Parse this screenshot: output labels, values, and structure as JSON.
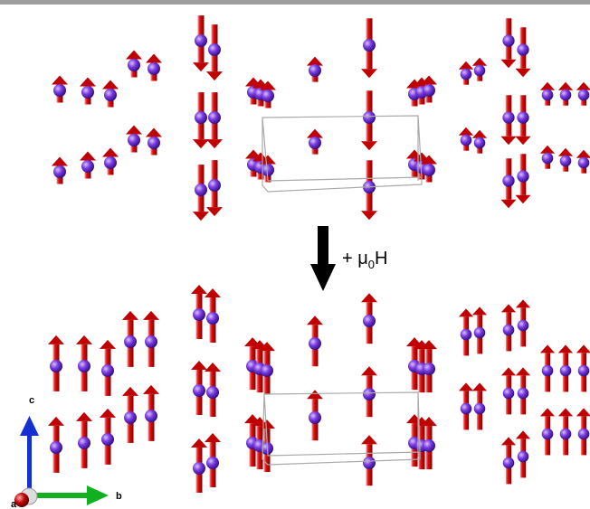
{
  "field_label": [
    "+ μ",
    "0",
    "H"
  ],
  "axes": [
    "c",
    "b",
    "a"
  ]
}
